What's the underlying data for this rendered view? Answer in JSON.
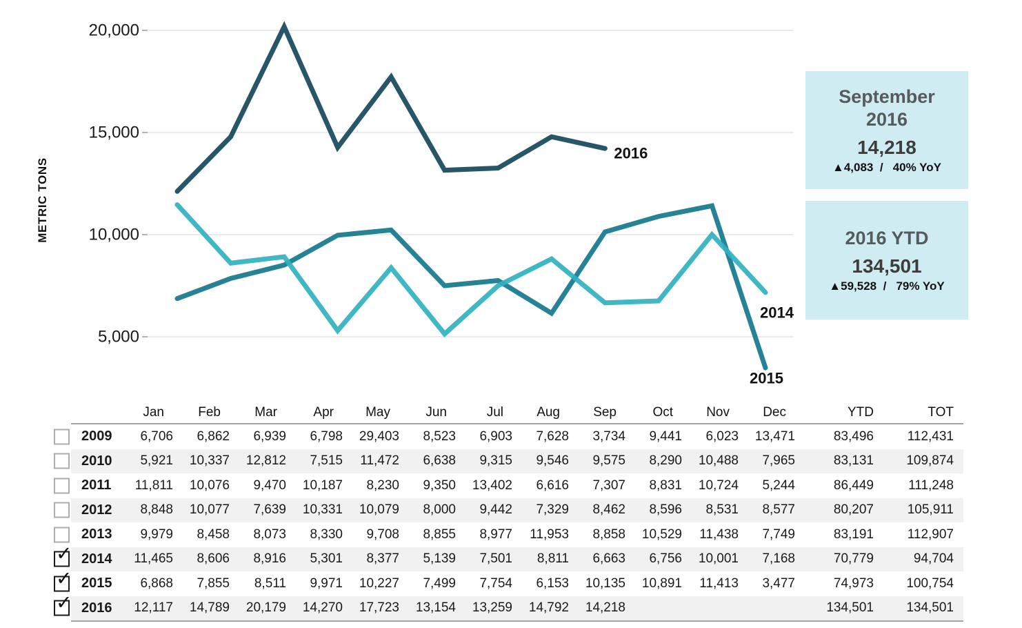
{
  "axis": {
    "y_title": "METRIC TONS"
  },
  "chart_data": {
    "type": "line",
    "x": [
      "Jan",
      "Feb",
      "Mar",
      "Apr",
      "May",
      "Jun",
      "Jul",
      "Aug",
      "Sep",
      "Oct",
      "Nov",
      "Dec"
    ],
    "ylabel": "METRIC TONS",
    "ylim": [
      0,
      21000
    ],
    "y_ticks": [
      5000,
      10000,
      15000,
      20000
    ],
    "grid": true,
    "legend_position": "line-end-labels",
    "series": [
      {
        "name": "2015",
        "color": "#14788c",
        "values": [
          6868,
          7855,
          8511,
          9971,
          10227,
          7499,
          7754,
          6153,
          10135,
          10891,
          11413,
          3477
        ]
      },
      {
        "name": "2014",
        "color": "#30b1bf",
        "values": [
          11465,
          8606,
          8916,
          5301,
          8377,
          5139,
          7501,
          8811,
          6663,
          6756,
          10001,
          7168
        ]
      },
      {
        "name": "2016",
        "color": "#15485c",
        "values": [
          12117,
          14789,
          20179,
          14270,
          17723,
          13154,
          13259,
          14792,
          14218
        ]
      }
    ]
  },
  "callouts": [
    {
      "title_lines": [
        "September",
        "2016"
      ],
      "value": "14,218",
      "delta": "▲4,083  /   40% YoY"
    },
    {
      "title_lines": [
        "2016 YTD",
        ""
      ],
      "value": "134,501",
      "delta": "▲59,528  /   79% YoY"
    }
  ],
  "table": {
    "columns": [
      "Jan",
      "Feb",
      "Mar",
      "Apr",
      "May",
      "Jun",
      "Jul",
      "Aug",
      "Sep",
      "Oct",
      "Nov",
      "Dec",
      "YTD",
      "TOT"
    ],
    "rows": [
      {
        "year": "2009",
        "checked": false,
        "values": [
          "6,706",
          "6,862",
          "6,939",
          "6,798",
          "29,403",
          "8,523",
          "6,903",
          "7,628",
          "3,734",
          "9,441",
          "6,023",
          "13,471"
        ],
        "ytd": "83,496",
        "tot": "112,431"
      },
      {
        "year": "2010",
        "checked": false,
        "values": [
          "5,921",
          "10,337",
          "12,812",
          "7,515",
          "11,472",
          "6,638",
          "9,315",
          "9,546",
          "9,575",
          "8,290",
          "10,488",
          "7,965"
        ],
        "ytd": "83,131",
        "tot": "109,874"
      },
      {
        "year": "2011",
        "checked": false,
        "values": [
          "11,811",
          "10,076",
          "9,470",
          "10,187",
          "8,230",
          "9,350",
          "13,402",
          "6,616",
          "7,307",
          "8,831",
          "10,724",
          "5,244"
        ],
        "ytd": "86,449",
        "tot": "111,248"
      },
      {
        "year": "2012",
        "checked": false,
        "values": [
          "8,848",
          "10,077",
          "7,639",
          "10,331",
          "10,079",
          "8,000",
          "9,442",
          "7,329",
          "8,462",
          "8,596",
          "8,531",
          "8,577"
        ],
        "ytd": "80,207",
        "tot": "105,911"
      },
      {
        "year": "2013",
        "checked": false,
        "values": [
          "9,979",
          "8,458",
          "8,073",
          "8,330",
          "9,708",
          "8,855",
          "8,977",
          "11,953",
          "8,858",
          "10,529",
          "11,438",
          "7,749"
        ],
        "ytd": "83,191",
        "tot": "112,907"
      },
      {
        "year": "2014",
        "checked": true,
        "values": [
          "11,465",
          "8,606",
          "8,916",
          "5,301",
          "8,377",
          "5,139",
          "7,501",
          "8,811",
          "6,663",
          "6,756",
          "10,001",
          "7,168"
        ],
        "ytd": "70,779",
        "tot": "94,704"
      },
      {
        "year": "2015",
        "checked": true,
        "values": [
          "6,868",
          "7,855",
          "8,511",
          "9,971",
          "10,227",
          "7,499",
          "7,754",
          "6,153",
          "10,135",
          "10,891",
          "11,413",
          "3,477"
        ],
        "ytd": "74,973",
        "tot": "100,754"
      },
      {
        "year": "2016",
        "checked": true,
        "values": [
          "12,117",
          "14,789",
          "20,179",
          "14,270",
          "17,723",
          "13,154",
          "13,259",
          "14,792",
          "14,218",
          "",
          "",
          ""
        ],
        "ytd": "134,501",
        "tot": "134,501"
      }
    ]
  }
}
